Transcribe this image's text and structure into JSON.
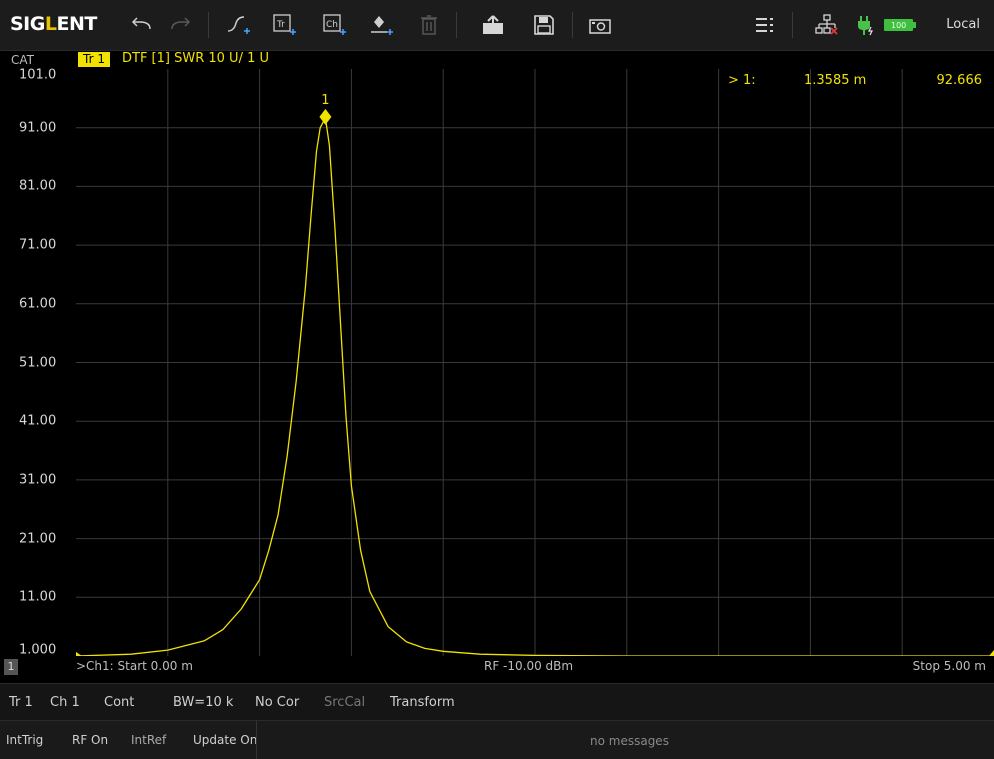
{
  "app": {
    "logo_pre": "SIG",
    "logo_l": "L",
    "logo_post": "ENT",
    "remote_mode": "Local"
  },
  "toolbar_icons": [
    "undo-icon",
    "redo-icon",
    "add-trace-icon",
    "add-trace-box-icon",
    "add-channel-icon",
    "add-marker-icon",
    "delete-icon",
    "open-file-icon",
    "save-icon",
    "screenshot-icon",
    "menu-icon",
    "network-disconnected-icon",
    "power-plug-icon",
    "battery-icon"
  ],
  "battery_level": "100",
  "trace_header": {
    "cat": "CAT",
    "trace_badge": "Tr 1",
    "title": "DTF [1] SWR 10 U/ 1 U"
  },
  "marker": {
    "label": "1",
    "readout_id": "> 1:",
    "readout_x": "1.3585 m",
    "readout_y": "92.666"
  },
  "chart_data": {
    "type": "line",
    "title": "DTF [1] SWR 10 U/ 1 U",
    "xlabel": "",
    "ylabel": "",
    "x_unit": "m",
    "xlim": [
      0,
      5
    ],
    "ylim": [
      1,
      101
    ],
    "yticks": [
      "101.0",
      "91.00",
      "81.00",
      "71.00",
      "61.00",
      "51.00",
      "41.00",
      "31.00",
      "21.00",
      "11.00",
      "1.000"
    ],
    "grid": true,
    "series": [
      {
        "color": "#f2e200",
        "x": [
          0,
          0.3,
          0.5,
          0.7,
          0.8,
          0.9,
          1.0,
          1.05,
          1.1,
          1.15,
          1.2,
          1.25,
          1.28,
          1.31,
          1.33,
          1.3585,
          1.38,
          1.41,
          1.44,
          1.47,
          1.5,
          1.55,
          1.6,
          1.7,
          1.8,
          1.9,
          2.0,
          2.2,
          2.5,
          3.0,
          4.0,
          5.0
        ],
        "y": [
          1.0,
          1.3,
          2.0,
          3.6,
          5.5,
          9.0,
          14.0,
          19.0,
          25.0,
          35.0,
          48.0,
          64.0,
          76.0,
          87.0,
          91.0,
          92.666,
          88.0,
          74.0,
          58.0,
          42.0,
          30.0,
          19.0,
          12.0,
          6.0,
          3.4,
          2.3,
          1.8,
          1.3,
          1.1,
          1.0,
          1.0,
          1.0
        ]
      }
    ],
    "markers": [
      {
        "label": "1",
        "x": 1.3585,
        "y": 92.666
      }
    ]
  },
  "channel_bar": {
    "num": "1",
    "start": ">Ch1: Start 0.00 m",
    "rf": "RF -10.00 dBm",
    "stop": "Stop 5.00 m"
  },
  "status_bar": {
    "trace": "Tr 1",
    "channel": "Ch 1",
    "sweep": "Cont",
    "bw": "BW=10 k",
    "correction": "No Cor",
    "srccal": "SrcCal",
    "transform": "Transform"
  },
  "status_bar2": {
    "trigger": "IntTrig",
    "rf": "RF On",
    "ref": "IntRef",
    "update": "Update On",
    "messages": "no messages"
  }
}
